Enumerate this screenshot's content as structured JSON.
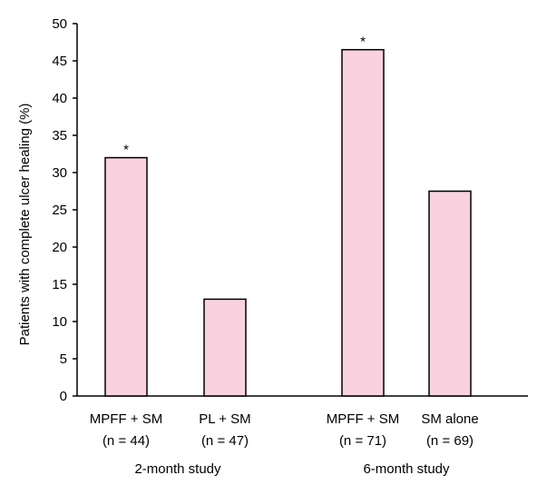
{
  "chart_data": {
    "type": "bar",
    "title": "",
    "xlabel": "",
    "ylabel": "Patients with complete ulcer healing (%)",
    "ylim": [
      0,
      50
    ],
    "yticks": [
      0,
      5,
      10,
      15,
      20,
      25,
      30,
      35,
      40,
      45,
      50
    ],
    "grid": false,
    "legend": "none",
    "bar_color": "#f9d1df",
    "bar_edge_color": "#000000",
    "categories": [
      {
        "label": "MPFF + SM",
        "n": "(n = 44)",
        "value": 32,
        "significance": "*",
        "group": 0
      },
      {
        "label": "PL + SM",
        "n": "(n = 47)",
        "value": 13,
        "significance": "",
        "group": 0
      },
      {
        "label": "MPFF + SM",
        "n": "(n = 71)",
        "value": 46.5,
        "significance": "*",
        "group": 1
      },
      {
        "label": "SM alone",
        "n": "(n = 69)",
        "value": 27.5,
        "significance": "",
        "group": 1
      }
    ],
    "groups": [
      {
        "label": "2-month study"
      },
      {
        "label": "6-month study"
      }
    ]
  }
}
